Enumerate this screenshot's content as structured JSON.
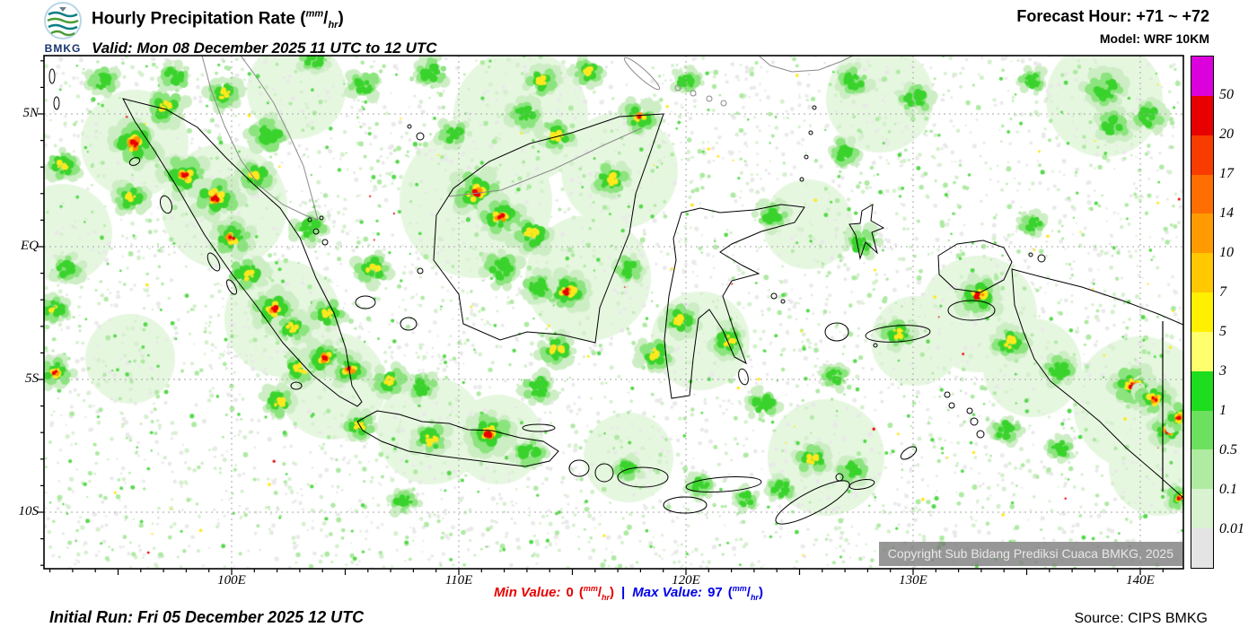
{
  "header": {
    "logo_text": "BMKG",
    "title": "Hourly Precipitation Rate",
    "unit_open": "(",
    "unit_num": "mm",
    "unit_slash": "/",
    "unit_den": "hr",
    "unit_close": ")",
    "valid_line": "Valid: Mon 08 December 2025 11 UTC to 12 UTC",
    "forecast_hour": "Forecast Hour: +71 ~ +72",
    "model": "Model: WRF 10KM"
  },
  "map": {
    "lat_labels": [
      "5N",
      "EQ",
      "5S",
      "10S"
    ],
    "lon_labels": [
      "100E",
      "110E",
      "120E",
      "130E",
      "140E"
    ],
    "copyright": "Copyright Sub Bidang Prediksi Cuaca BMKG, 2025"
  },
  "legend": {
    "values": [
      "50",
      "20",
      "17",
      "14",
      "10",
      "7",
      "5",
      "3",
      "1",
      "0.5",
      "0.1",
      "0.01"
    ],
    "colors": [
      "#dc00dc",
      "#e80000",
      "#f83c00",
      "#ff6e00",
      "#ff9b00",
      "#ffc800",
      "#fff000",
      "#ffff6e",
      "#1edc1e",
      "#6ee05f",
      "#afeba0",
      "#d9f2d0",
      "#e4e4e4"
    ]
  },
  "footer": {
    "min_label": "Min Value:",
    "min_value": "0",
    "separator": "|",
    "max_label": "Max Value:",
    "max_value": "97",
    "unit_open": "(",
    "unit_num": "mm",
    "unit_slash": "/",
    "unit_den": "hr",
    "unit_close": ")",
    "initial_run": "Initial Run: Fri 05 December 2025 12 UTC",
    "source": "Source: CIPS BMKG"
  }
}
